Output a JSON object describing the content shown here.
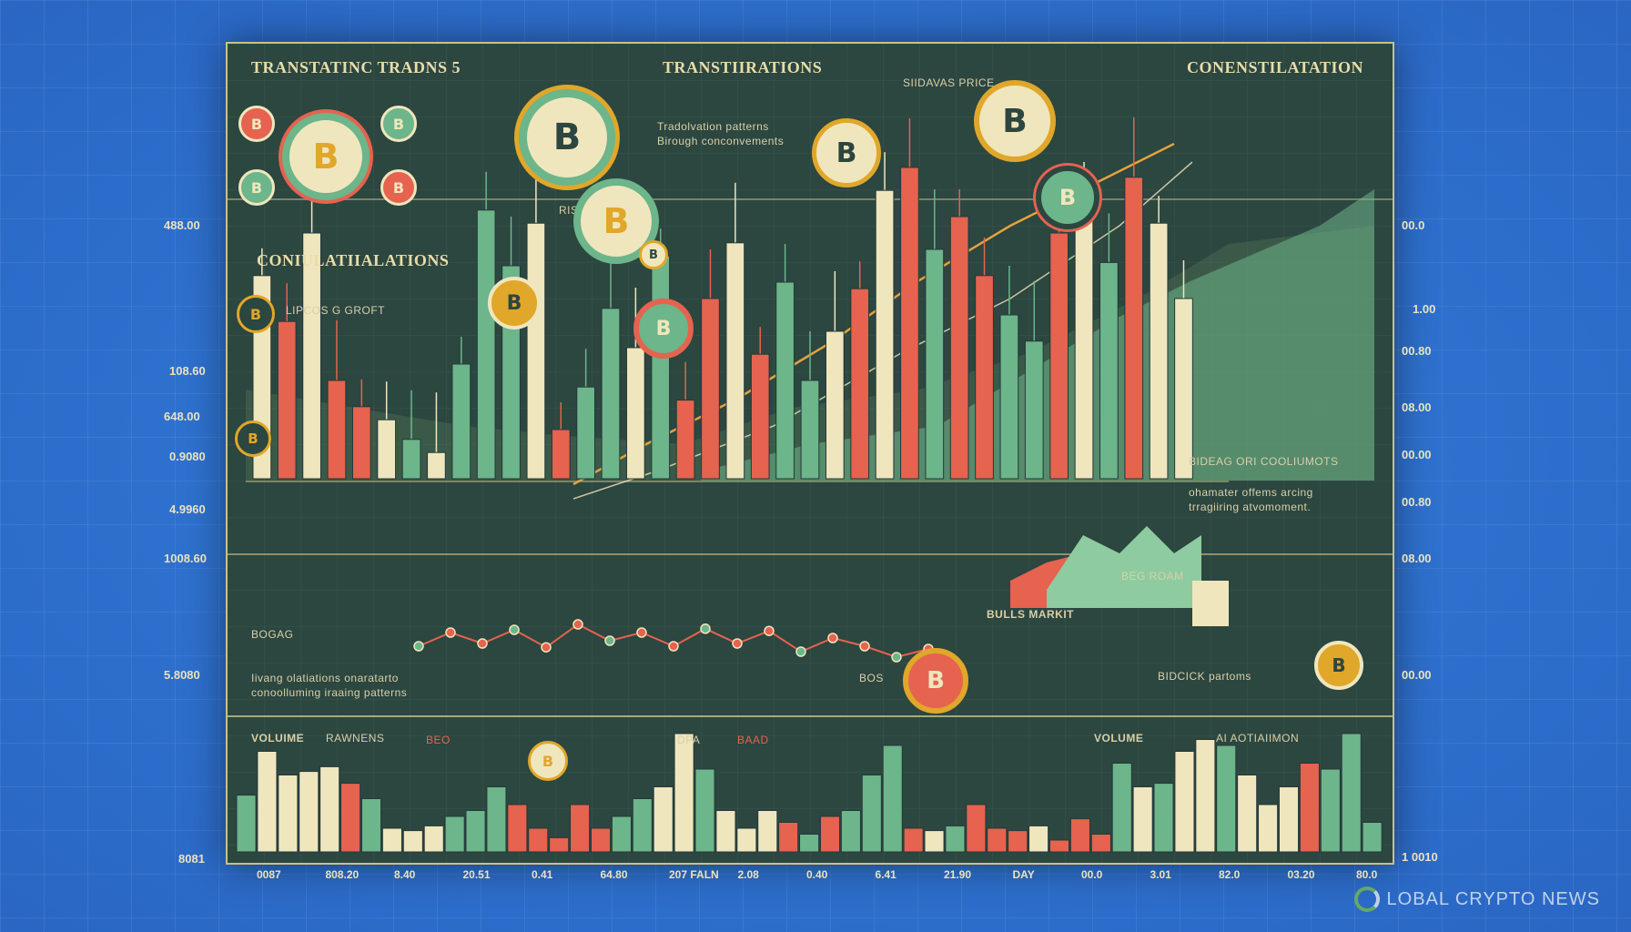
{
  "titles": {
    "top_left": "TRANSTATINC TRADNS 5",
    "top_center": "TRANSTIIRATIONS",
    "top_right": "CONENSTILATATION",
    "left_mid": "CONIULATIIALATIONS",
    "sub_price": "SIIDAVAS PRICE",
    "sub_rise": "RISE",
    "desc_center_1": "Tradolvation patterns",
    "desc_center_2": "Birough conconvements",
    "lipcos": "LIPCOS G GROFT",
    "right_note_1": "BIDEAG ORI COOLIUMOTS",
    "right_note_2": "ohamater offems arcing",
    "right_note_3": "trragiiring atvomoment.",
    "bulls": "BULLS MARKIT",
    "beg_roam": "BEG ROAM",
    "bichick": "BIDCICK partoms",
    "boag": "BOGAG",
    "lower_note_1": "Iivang olatiations onaratarto",
    "lower_note_2": "conoolluming iraaing patterns",
    "bos": "BOS",
    "volume_left": "VOLUIME",
    "rawnens": "RAWNENS",
    "beo": "BEO",
    "dpa": "DPA",
    "baad": "BAAD",
    "volume_right": "VOLUME",
    "aiiomon": "AI AOTIAIIMON"
  },
  "left_axis": [
    "488.00",
    "108.60",
    "648.00",
    "0.9080",
    "4.9960",
    "1008.60",
    "5.8080",
    "8081"
  ],
  "right_axis": [
    "00.0",
    "1.00",
    "00.80",
    "08.00",
    "00.00",
    "00.80",
    "08.00",
    "00.00",
    "1 0010"
  ],
  "x_ticks": [
    "0087",
    "808.20",
    "8.40",
    "20.51",
    "0.41",
    "64.80",
    "207 FALN",
    "2.08",
    "0.40",
    "6.41",
    "21.90",
    "DAY",
    "00.0",
    "3.01",
    "82.0",
    "03.20",
    "80.0"
  ],
  "coin_symbol": "B",
  "watermark": "LOBAL CRYPTO NEWS",
  "colors": {
    "green": "#6db58a",
    "red": "#e5634f",
    "cream": "#f0e6bd",
    "gold": "#e0a72a",
    "panel": "#2c4640"
  },
  "chart_data": [
    {
      "type": "bar",
      "title": "",
      "note": "candlestick-style price panel",
      "values": [
        0.62,
        0.48,
        0.75,
        0.3,
        0.22,
        0.18,
        0.12,
        0.08,
        0.35,
        0.82,
        0.65,
        0.78,
        0.15,
        0.28,
        0.52,
        0.4,
        0.68,
        0.24,
        0.55,
        0.72,
        0.38,
        0.6,
        0.3,
        0.45,
        0.58,
        0.88,
        0.95,
        0.7,
        0.8,
        0.62,
        0.5,
        0.42,
        0.75,
        0.85,
        0.66,
        0.92,
        0.78,
        0.55
      ],
      "colors": [
        "cream",
        "red",
        "cream",
        "red",
        "red",
        "cream",
        "green",
        "cream",
        "green",
        "green",
        "green",
        "cream",
        "red",
        "green",
        "green",
        "cream",
        "green",
        "red",
        "red",
        "cream",
        "red",
        "green",
        "green",
        "cream",
        "red",
        "cream",
        "red",
        "green",
        "red",
        "red",
        "green",
        "green",
        "red",
        "cream",
        "green",
        "red",
        "cream",
        "cream"
      ]
    },
    {
      "type": "line",
      "title": "",
      "values": [
        0.3,
        0.55,
        0.35,
        0.6,
        0.28,
        0.7,
        0.4,
        0.55,
        0.3,
        0.62,
        0.35,
        0.58,
        0.2,
        0.45,
        0.3,
        0.1,
        0.25
      ]
    },
    {
      "type": "bar",
      "title": "VOLUME",
      "values": [
        0.48,
        0.85,
        0.65,
        0.68,
        0.72,
        0.58,
        0.45,
        0.2,
        0.18,
        0.22,
        0.3,
        0.35,
        0.55,
        0.4,
        0.2,
        0.12,
        0.4,
        0.2,
        0.3,
        0.45,
        0.55,
        1.0,
        0.7,
        0.35,
        0.2,
        0.35,
        0.25,
        0.15,
        0.3,
        0.35,
        0.65,
        0.9,
        0.2,
        0.18,
        0.22,
        0.4,
        0.2,
        0.18,
        0.22,
        0.1,
        0.28,
        0.15,
        0.75,
        0.55,
        0.58,
        0.85,
        0.95,
        0.9,
        0.65,
        0.4,
        0.55,
        0.75,
        0.7,
        1.0,
        0.25
      ],
      "colors": [
        "green",
        "cream",
        "cream",
        "cream",
        "cream",
        "red",
        "green",
        "cream",
        "cream",
        "cream",
        "green",
        "green",
        "green",
        "red",
        "red",
        "red",
        "red",
        "red",
        "green",
        "green",
        "cream",
        "cream",
        "green",
        "cream",
        "cream",
        "cream",
        "red",
        "green",
        "red",
        "green",
        "green",
        "green",
        "red",
        "cream",
        "green",
        "red",
        "red",
        "red",
        "cream",
        "red",
        "red",
        "red",
        "green",
        "cream",
        "green",
        "cream",
        "cream",
        "green",
        "cream",
        "cream",
        "cream",
        "red",
        "green",
        "green",
        "green"
      ]
    }
  ]
}
